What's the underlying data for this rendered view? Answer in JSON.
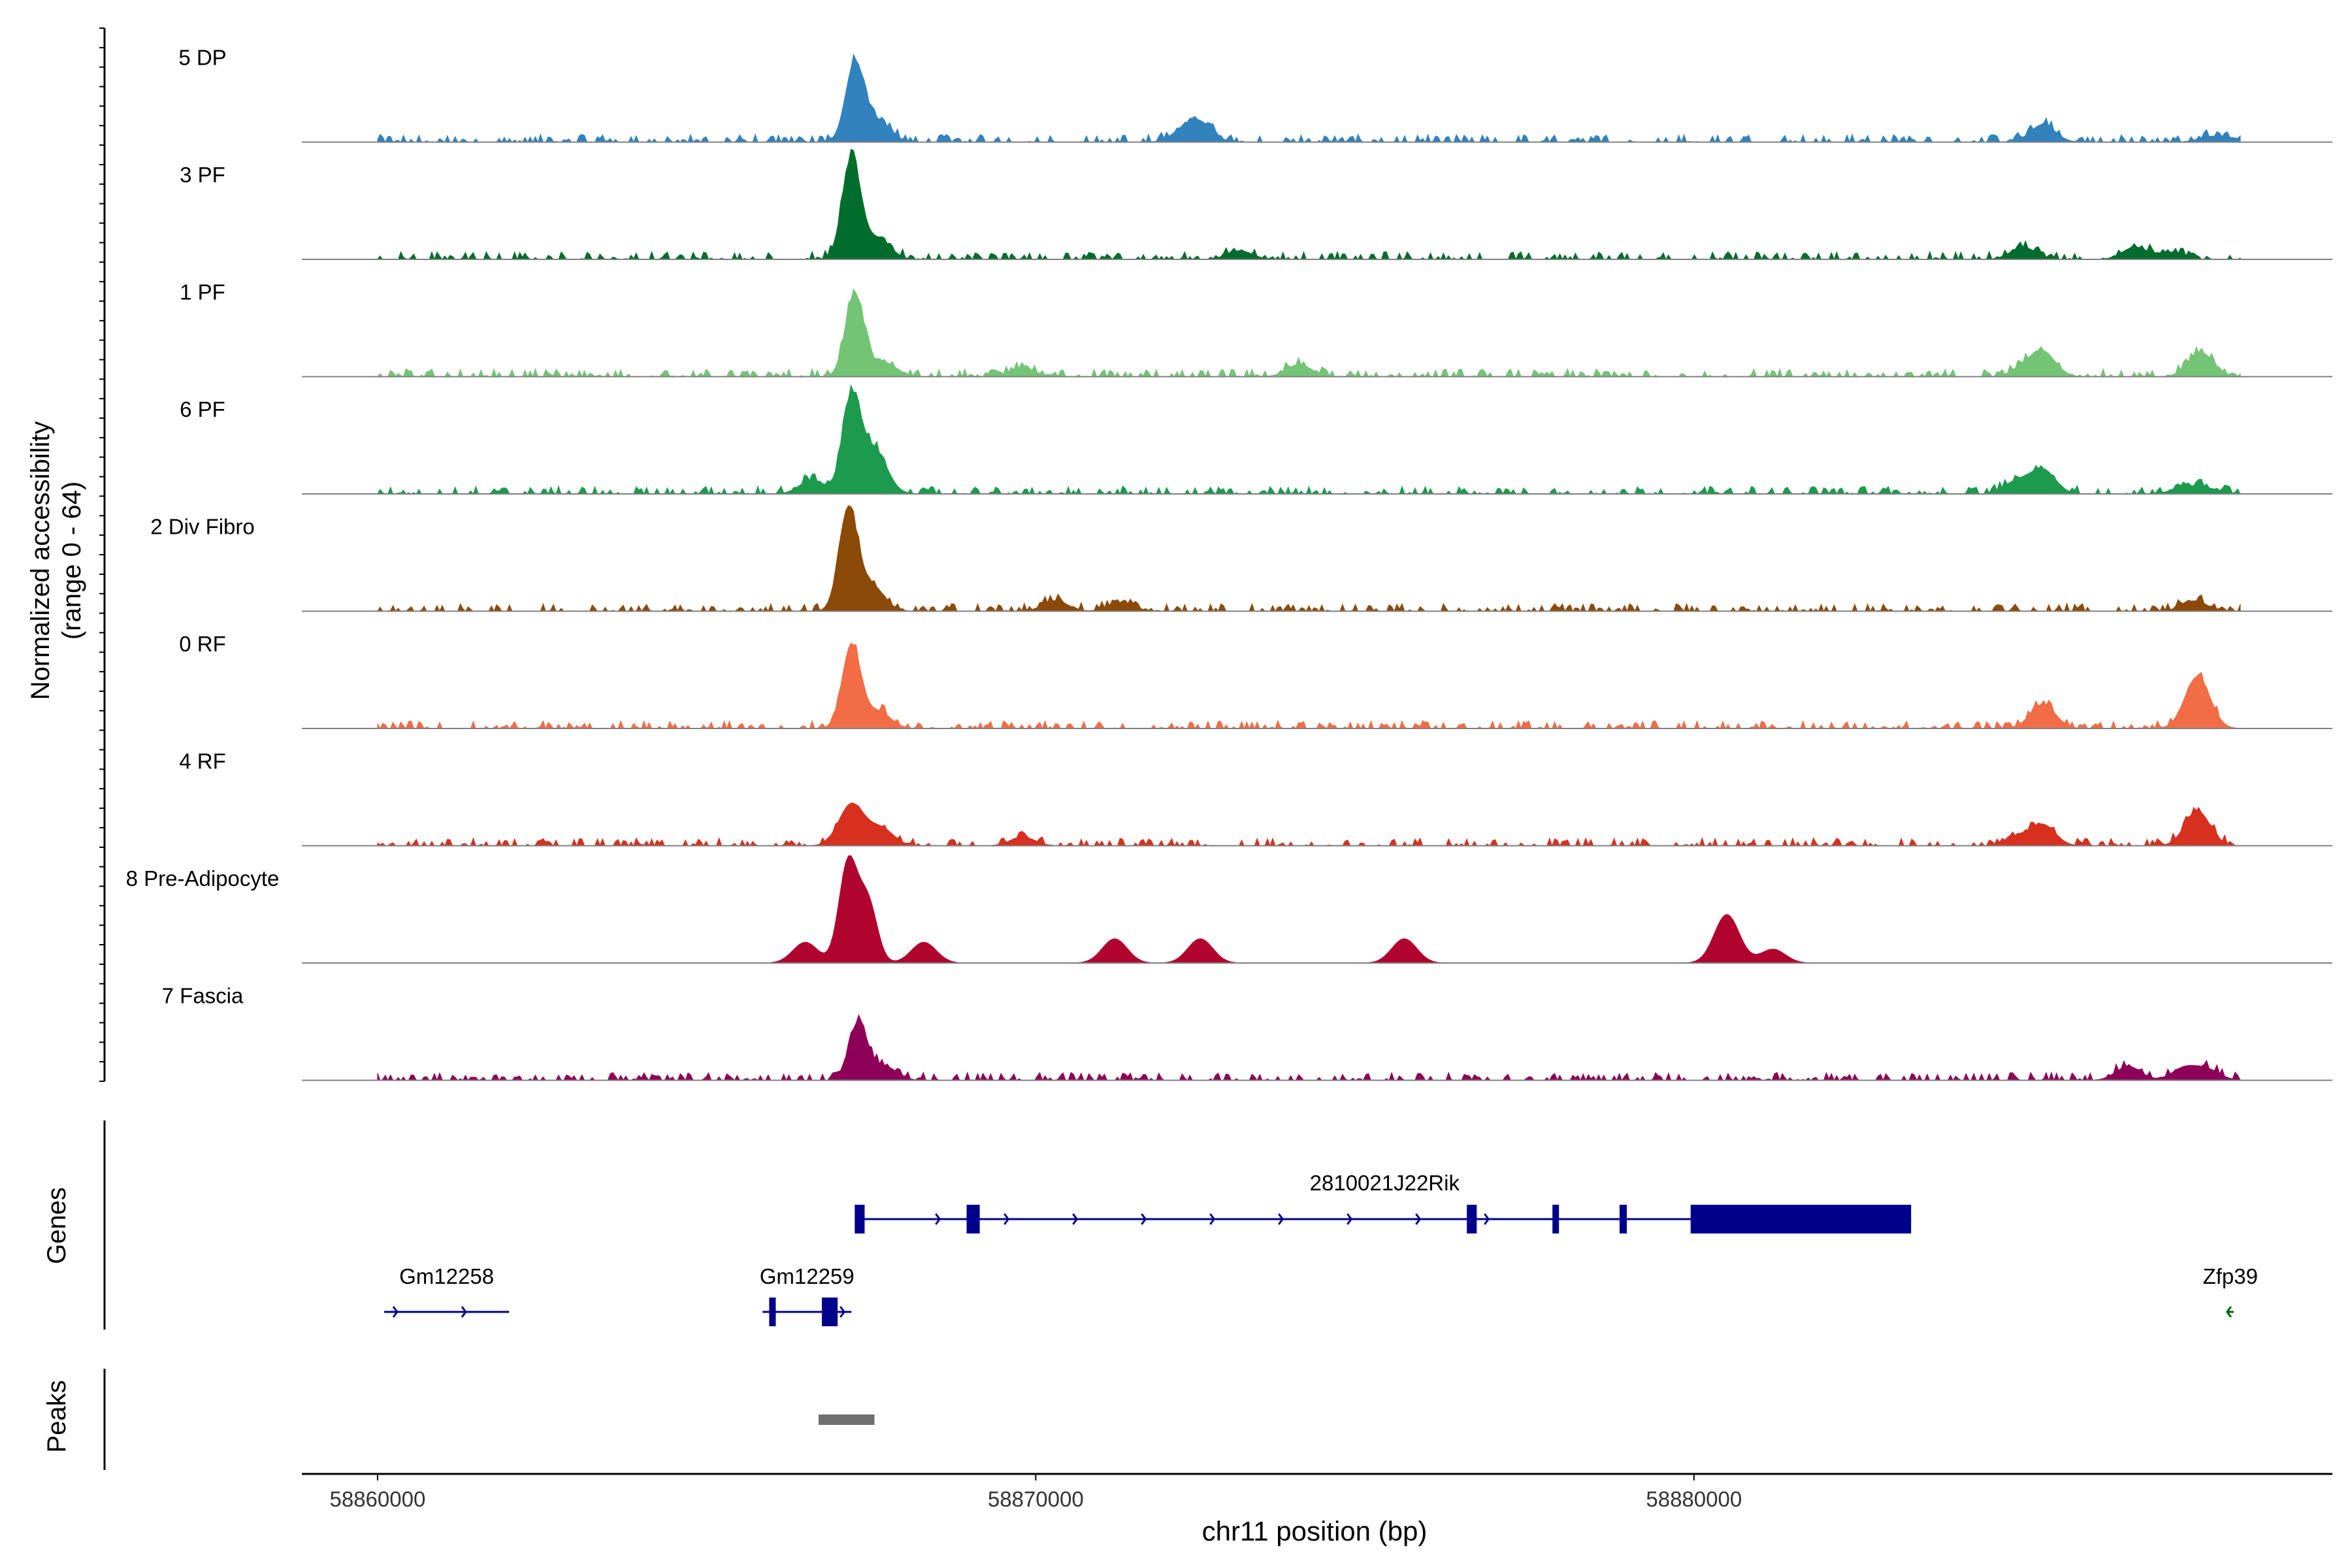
{
  "chart_data": {
    "type": "area",
    "chromosome": "chr11",
    "x_axis": {
      "label": "chr11 position (bp)",
      "range": [
        58858850,
        58889700
      ],
      "ticks": [
        58860000,
        58870000,
        58880000
      ],
      "tick_labels": [
        "58860000",
        "58870000",
        "58880000"
      ]
    },
    "y_axis": {
      "label_line1": "Normalized accessibility",
      "label_line2": "(range 0 - 64)",
      "range": [
        0,
        64
      ]
    },
    "data_start": 58860000,
    "data_end": 58888300,
    "tracks": [
      {
        "name": "5 DP",
        "color": "#3182bd",
        "peaks": [
          [
            58867250,
            45
          ],
          [
            58867600,
            12
          ],
          [
            58872500,
            10
          ],
          [
            58872250,
            6
          ],
          [
            58885300,
            10
          ],
          [
            58887850,
            3
          ],
          [
            58888200,
            2
          ]
        ]
      },
      {
        "name": "3 PF",
        "color": "#006d2c",
        "peaks": [
          [
            58867200,
            58
          ],
          [
            58867600,
            12
          ],
          [
            58873100,
            5
          ],
          [
            58885000,
            7
          ],
          [
            58886700,
            7
          ],
          [
            58887250,
            4
          ]
        ]
      },
      {
        "name": "1 PF",
        "color": "#74c476",
        "peaks": [
          [
            58867250,
            48
          ],
          [
            58867700,
            8
          ],
          [
            58869800,
            5
          ],
          [
            58874000,
            7
          ],
          [
            58885300,
            14
          ],
          [
            58887700,
            14
          ],
          [
            58885000,
            4
          ]
        ]
      },
      {
        "name": "6 PF",
        "color": "#1c9b4e",
        "peaks": [
          [
            58867200,
            54
          ],
          [
            58867550,
            25
          ],
          [
            58866600,
            8
          ],
          [
            58885300,
            14
          ],
          [
            58884900,
            7
          ],
          [
            58887450,
            4
          ],
          [
            58887800,
            3
          ]
        ]
      },
      {
        "name": "2 Div Fibro",
        "color": "#8c4a08",
        "peaks": [
          [
            58867150,
            58
          ],
          [
            58867500,
            15
          ],
          [
            58870300,
            6
          ],
          [
            58871300,
            5
          ],
          [
            58887600,
            6
          ]
        ]
      },
      {
        "name": "0 RF",
        "color": "#f26c45",
        "peaks": [
          [
            58867200,
            48
          ],
          [
            58867600,
            10
          ],
          [
            58885300,
            14
          ],
          [
            58887650,
            30
          ]
        ]
      },
      {
        "name": "4 RF",
        "color": "#d7301f",
        "peaks": [
          [
            58867200,
            24
          ],
          [
            58867650,
            10
          ],
          [
            58869800,
            5
          ],
          [
            58885300,
            12
          ],
          [
            58887650,
            20
          ],
          [
            58884900,
            5
          ]
        ]
      },
      {
        "name": "8 Pre-Adipocyte",
        "color": "#b0042e",
        "peaks": [
          [
            58867150,
            58
          ],
          [
            58867450,
            35
          ],
          [
            58866500,
            12
          ],
          [
            58868300,
            12
          ],
          [
            58871200,
            14
          ],
          [
            58872500,
            14
          ],
          [
            58875600,
            14
          ],
          [
            58880500,
            28
          ],
          [
            58881200,
            8
          ]
        ]
      },
      {
        "name": "7 Fascia",
        "color": "#8e0057",
        "peaks": [
          [
            58867300,
            33
          ],
          [
            58867700,
            8
          ],
          [
            58886600,
            8
          ],
          [
            58887450,
            7
          ],
          [
            58887800,
            6
          ]
        ]
      }
    ],
    "genes_label": "Genes",
    "genes": [
      {
        "name": "2810021J22Rik",
        "start": 58867300,
        "end": 58883300,
        "strand": "+",
        "row": 0,
        "color": "#00008b",
        "exons": [
          [
            58867250,
            58867400
          ],
          [
            58868950,
            58869150
          ],
          [
            58876550,
            58876700
          ],
          [
            58877850,
            58877900
          ],
          [
            58878870,
            58878980
          ],
          [
            58879950,
            58883300
          ]
        ]
      },
      {
        "name": "Gm12258",
        "start": 58860100,
        "end": 58862000,
        "strand": "+",
        "row": 1,
        "color": "#00008b",
        "exons": []
      },
      {
        "name": "Gm12259",
        "start": 58865850,
        "end": 58867200,
        "strand": "+",
        "row": 1,
        "color": "#00008b",
        "exons": [
          [
            58865950,
            58866050
          ],
          [
            58866750,
            58866990
          ]
        ]
      },
      {
        "name": "Zfp39",
        "start": 58888100,
        "end": 58888200,
        "strand": "-",
        "row": 1,
        "color": "#006400",
        "exons": []
      }
    ],
    "peaks_label": "Peaks",
    "peak_regions": [
      [
        58866700,
        58867550
      ]
    ],
    "peak_color": "#707070"
  }
}
